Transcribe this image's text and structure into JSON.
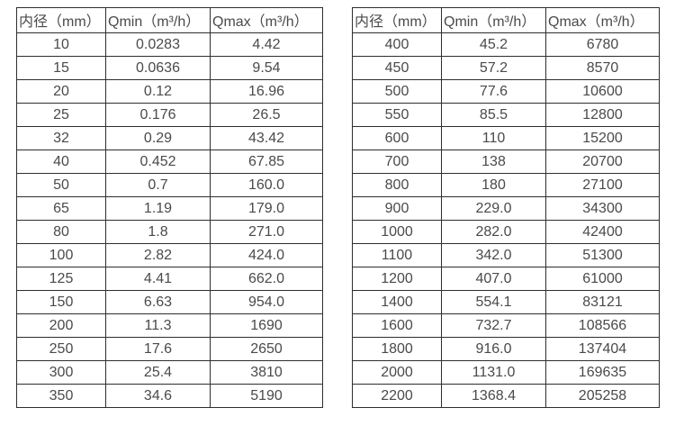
{
  "page": {
    "background": "#ffffff",
    "border_color": "#2e2e2e",
    "text_color": "#4a4a4a"
  },
  "tables": [
    {
      "name": "small-diameter-flow-table",
      "headers": [
        "内径（mm）",
        "Qmin（m³/h）",
        "Qmax（m³/h）"
      ],
      "rows": [
        [
          "10",
          "0.0283",
          "4.42"
        ],
        [
          "15",
          "0.0636",
          "9.54"
        ],
        [
          "20",
          "0.12",
          "16.96"
        ],
        [
          "25",
          "0.176",
          "26.5"
        ],
        [
          "32",
          "0.29",
          "43.42"
        ],
        [
          "40",
          "0.452",
          "67.85"
        ],
        [
          "50",
          "0.7",
          "160.0"
        ],
        [
          "65",
          "1.19",
          "179.0"
        ],
        [
          "80",
          "1.8",
          "271.0"
        ],
        [
          "100",
          "2.82",
          "424.0"
        ],
        [
          "125",
          "4.41",
          "662.0"
        ],
        [
          "150",
          "6.63",
          "954.0"
        ],
        [
          "200",
          "11.3",
          "1690"
        ],
        [
          "250",
          "17.6",
          "2650"
        ],
        [
          "300",
          "25.4",
          "3810"
        ],
        [
          "350",
          "34.6",
          "5190"
        ]
      ]
    },
    {
      "name": "large-diameter-flow-table",
      "headers": [
        "内径（mm）",
        "Qmin（m³/h）",
        "Qmax（m³/h）"
      ],
      "rows": [
        [
          "400",
          "45.2",
          "6780"
        ],
        [
          "450",
          "57.2",
          "8570"
        ],
        [
          "500",
          "77.6",
          "10600"
        ],
        [
          "550",
          "85.5",
          "12800"
        ],
        [
          "600",
          "110",
          "15200"
        ],
        [
          "700",
          "138",
          "20700"
        ],
        [
          "800",
          "180",
          "27100"
        ],
        [
          "900",
          "229.0",
          "34300"
        ],
        [
          "1000",
          "282.0",
          "42400"
        ],
        [
          "1100",
          "342.0",
          "51300"
        ],
        [
          "1200",
          "407.0",
          "61000"
        ],
        [
          "1400",
          "554.1",
          "83121"
        ],
        [
          "1600",
          "732.7",
          "108566"
        ],
        [
          "1800",
          "916.0",
          "137404"
        ],
        [
          "2000",
          "1131.0",
          "169635"
        ],
        [
          "2200",
          "1368.4",
          "205258"
        ]
      ]
    }
  ]
}
